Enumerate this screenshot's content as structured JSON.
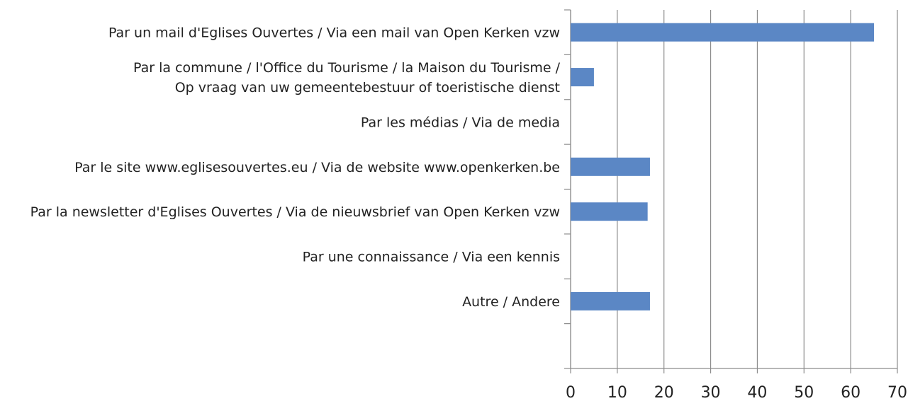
{
  "chart_data": {
    "type": "bar",
    "orientation": "horizontal",
    "categories": [
      "Par un mail d'Eglises Ouvertes / Via een mail van Open Kerken vzw",
      "Par la commune / l'Office du Tourisme / la Maison du Tourisme /\nOp vraag van uw gemeentebestuur of toeristische dienst",
      "Par les médias / Via de media",
      "Par le site www.eglisesouvertes.eu / Via de website www.openkerken.be",
      "Par la newsletter d'Eglises Ouvertes / Via de nieuwsbrief van Open Kerken vzw",
      "Par une connaissance / Via een kennis",
      "Autre / Andere",
      null
    ],
    "values": [
      65,
      5,
      0,
      17,
      16.5,
      0,
      17,
      null
    ],
    "color": "#5b87c5",
    "xlim": [
      0,
      70
    ],
    "xticks": [
      0,
      10,
      20,
      30,
      40,
      50,
      60,
      70
    ],
    "grid": true
  }
}
